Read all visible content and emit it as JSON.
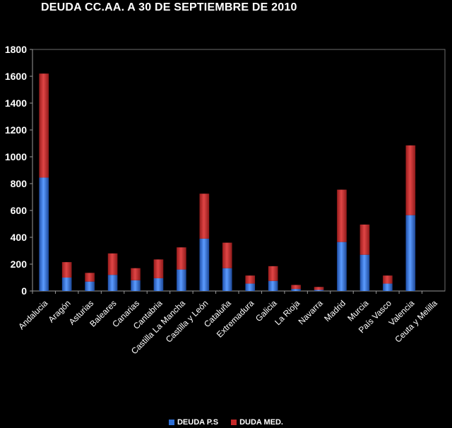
{
  "chart_data": {
    "type": "bar",
    "stacked": true,
    "title": "DEUDA  CC.AA. A 30 DE SEPTIEMBRE DE 2010",
    "categories": [
      "Andalucia",
      "Aragón",
      "Asturias",
      "Baleares",
      "Canarias",
      "Cantabria",
      "Castilla La Mancha",
      "Castilla y León",
      "Cataluña",
      "Extremadura",
      "Galicia",
      "La Rioja",
      "Navarra",
      "Madrid",
      "Murcia",
      "País Vasco",
      "Valencia",
      "Ceuta y Melilla"
    ],
    "series": [
      {
        "name": "DEUDA P.S",
        "color": "#2e6fd6",
        "values": [
          845,
          100,
          70,
          120,
          80,
          95,
          160,
          390,
          170,
          55,
          75,
          15,
          8,
          365,
          270,
          55,
          565,
          0
        ]
      },
      {
        "name": "DUDA MED.",
        "color": "#c62828",
        "values": [
          775,
          115,
          65,
          160,
          90,
          140,
          165,
          335,
          190,
          60,
          110,
          30,
          22,
          390,
          225,
          60,
          520,
          0
        ]
      }
    ],
    "ylim": [
      0,
      1800
    ],
    "yticks": [
      0,
      200,
      400,
      600,
      800,
      1000,
      1200,
      1400,
      1600,
      1800
    ],
    "grid": false,
    "legend": "bottom"
  }
}
